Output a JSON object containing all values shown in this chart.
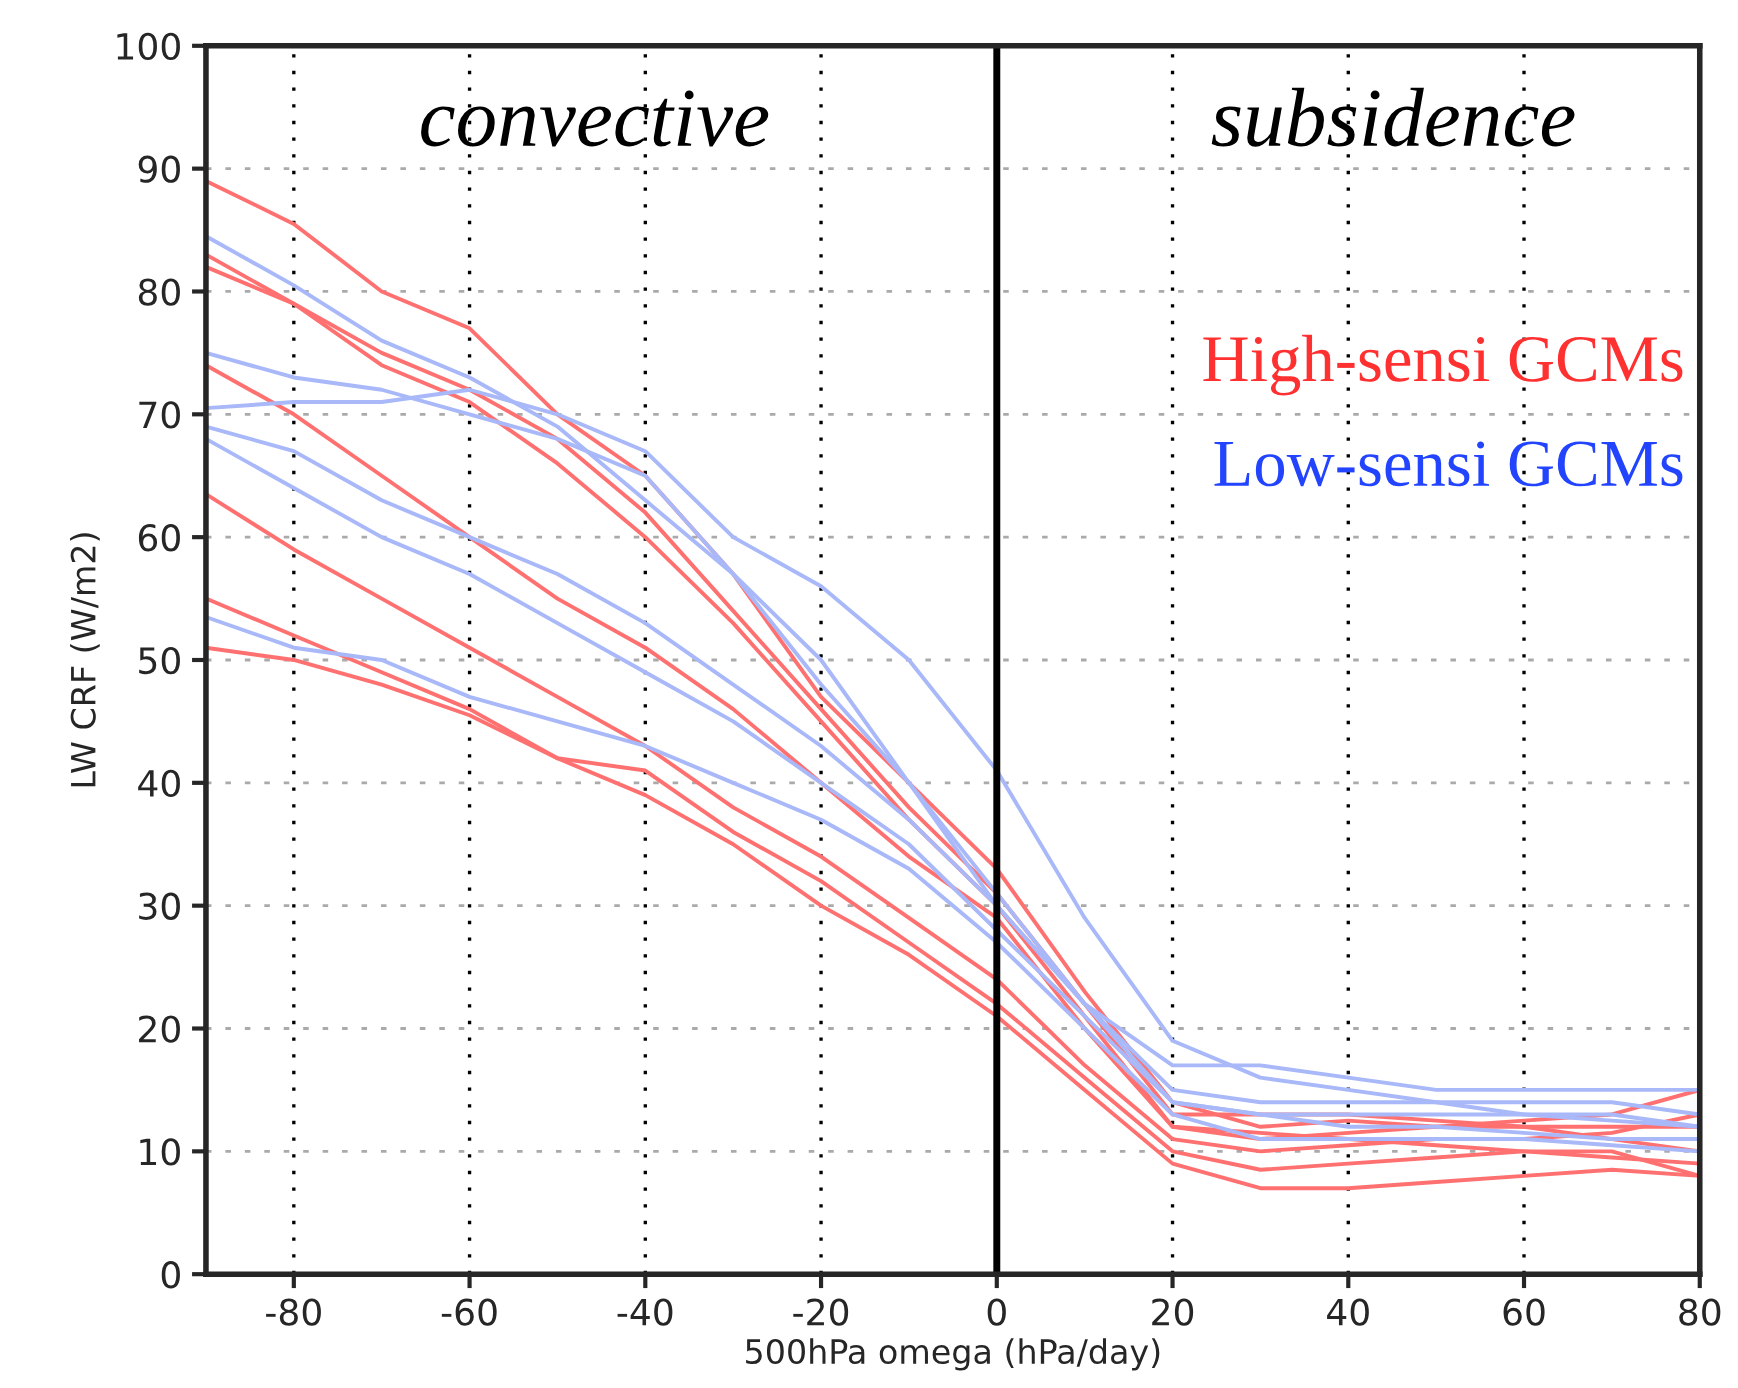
{
  "chart_data": {
    "type": "line",
    "xlabel": "500hPa omega (hPa/day)",
    "ylabel": "LW CRF (W/m2)",
    "x": [
      -90,
      -80,
      -70,
      -60,
      -50,
      -40,
      -30,
      -20,
      -10,
      0,
      10,
      20,
      30,
      40,
      50,
      60,
      70,
      80
    ],
    "xlim": [
      -90,
      80
    ],
    "xticks": [
      -80,
      -60,
      -40,
      -20,
      0,
      20,
      40,
      60,
      80
    ],
    "ylim": [
      0,
      100
    ],
    "yticks": [
      0,
      10,
      20,
      30,
      40,
      50,
      60,
      70,
      80,
      90,
      100
    ],
    "grid": true,
    "line_style": "solid",
    "ref_lines": [
      {
        "axis": "x",
        "value": 0,
        "color": "#000000"
      }
    ],
    "annotations": [
      "convective",
      "subsidence",
      "High-sensi GCMs",
      "Low-sensi GCMs"
    ],
    "series": [
      {
        "color": "#ff7070",
        "values": [
          89,
          85.5,
          80,
          77,
          70,
          65,
          57,
          47,
          40,
          33,
          23,
          14,
          12,
          12.5,
          12,
          12,
          11,
          10
        ]
      },
      {
        "color": "#ff7070",
        "values": [
          83,
          79,
          75,
          72,
          68,
          62,
          54,
          46,
          38,
          31,
          22,
          13,
          13,
          13,
          12.5,
          12,
          12,
          12
        ]
      },
      {
        "color": "#ff7070",
        "values": [
          82,
          79,
          74,
          71,
          66,
          60,
          53,
          45,
          37,
          30,
          21,
          12,
          11,
          11.5,
          12,
          12.5,
          13,
          15
        ]
      },
      {
        "color": "#ff7070",
        "values": [
          74,
          70,
          65,
          60,
          55,
          51,
          46,
          40,
          34,
          29,
          20,
          12,
          11.5,
          11,
          10.5,
          10,
          9.5,
          9
        ]
      },
      {
        "color": "#ff7070",
        "values": [
          63.5,
          59,
          55,
          51,
          47,
          43,
          38,
          34,
          29,
          24,
          17,
          11,
          10,
          10.5,
          11,
          11,
          11.5,
          13
        ]
      },
      {
        "color": "#ff7070",
        "values": [
          55,
          52,
          49,
          46,
          42,
          41,
          36,
          32,
          27,
          22,
          16,
          10,
          8.5,
          9,
          9.5,
          10,
          10,
          8
        ]
      },
      {
        "color": "#ff7070",
        "values": [
          51,
          50,
          48,
          45.5,
          42,
          39,
          35,
          30,
          26,
          21,
          15,
          9,
          7,
          7,
          7.5,
          8,
          8.5,
          8
        ]
      },
      {
        "color": "#a8b8f8",
        "values": [
          84.5,
          80.5,
          76,
          73,
          69,
          63,
          57,
          48,
          40,
          31,
          22,
          14,
          13,
          13,
          13,
          13,
          12.5,
          12
        ]
      },
      {
        "color": "#a8b8f8",
        "values": [
          75,
          73,
          72,
          70,
          68,
          65,
          57,
          50,
          40,
          30,
          22,
          15,
          14,
          14,
          14,
          14,
          14,
          13
        ]
      },
      {
        "color": "#a8b8f8",
        "values": [
          70.5,
          71,
          71,
          72,
          70,
          67,
          60,
          56,
          50,
          41,
          29,
          19,
          16,
          15,
          14,
          13,
          13,
          12
        ]
      },
      {
        "color": "#a8b8f8",
        "values": [
          69,
          67,
          63,
          60,
          57,
          53,
          48,
          43,
          37,
          30,
          22,
          17,
          17,
          16,
          15,
          15,
          15,
          15
        ]
      },
      {
        "color": "#a8b8f8",
        "values": [
          68,
          64,
          60,
          57,
          53,
          49,
          45,
          40,
          35,
          28,
          21,
          14,
          13,
          12,
          12,
          11.5,
          11,
          11
        ]
      },
      {
        "color": "#a8b8f8",
        "values": [
          53.5,
          51,
          50,
          47,
          45,
          43,
          40,
          37,
          33,
          27,
          20,
          13,
          11,
          11,
          11,
          11,
          10.5,
          10
        ]
      }
    ]
  }
}
